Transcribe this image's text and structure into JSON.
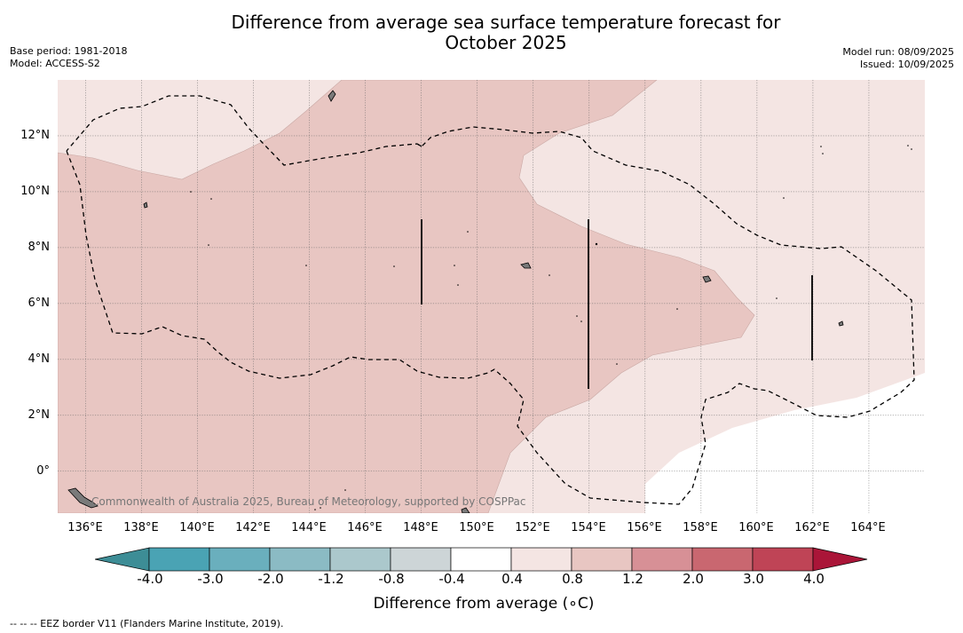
{
  "title_line1": "Difference from average sea surface temperature forecast for",
  "title_line2": "October 2025",
  "meta_left": [
    "Base period: 1981-2018",
    "Model: ACCESS-S2"
  ],
  "meta_right": [
    "Model run: 08/09/2025",
    "Issued: 10/09/2025"
  ],
  "map": {
    "lon_range": [
      135,
      166
    ],
    "lat_range": [
      -1.5,
      14
    ],
    "lon_ticks": [
      "136°E",
      "138°E",
      "140°E",
      "142°E",
      "144°E",
      "146°E",
      "148°E",
      "150°E",
      "152°E",
      "154°E",
      "156°E",
      "158°E",
      "160°E",
      "162°E",
      "164°E"
    ],
    "lat_ticks": [
      "12°N",
      "10°N",
      "8°N",
      "6°N",
      "4°N",
      "2°N",
      "0°"
    ],
    "credit": "Commonwealth of Australia 2025, Bureau of Meteorology, supported by COSPPac",
    "fill_colors": {
      "warm_0_8_1_2": "#e8c6c2",
      "warm_0_4_0_8": "#f4e5e3",
      "neutral": "#ffffff"
    },
    "grid": true
  },
  "colorbar": {
    "label": "Difference from average (∘C)",
    "tick_labels": [
      "-4.0",
      "-3.0",
      "-2.0",
      "-1.2",
      "-0.8",
      "-0.4",
      "0.4",
      "0.8",
      "1.2",
      "2.0",
      "3.0",
      "4.0"
    ],
    "colors": [
      "#3d8d96",
      "#4aa3b4",
      "#6aafbd",
      "#8bbbc4",
      "#abc8cc",
      "#cdd5d7",
      "#ffffff",
      "#f4e5e3",
      "#e8c6c2",
      "#d79096",
      "#c96770",
      "#bf4456",
      "#aa1538"
    ]
  },
  "footnote": "--  --  -- EEZ border V11 (Flanders Marine Institute, 2019)."
}
